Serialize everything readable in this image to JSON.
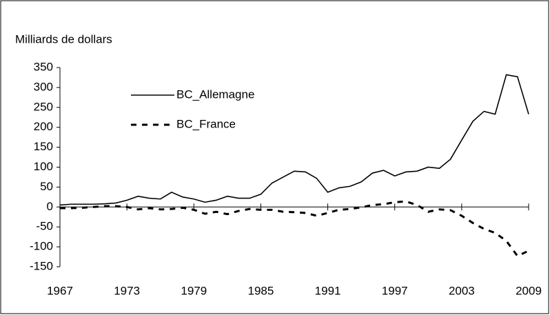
{
  "chart_data": {
    "type": "line",
    "y_label": "Milliards de dollars",
    "x": [
      1967,
      1968,
      1969,
      1970,
      1971,
      1972,
      1973,
      1974,
      1975,
      1976,
      1977,
      1978,
      1979,
      1980,
      1981,
      1982,
      1983,
      1984,
      1985,
      1986,
      1987,
      1988,
      1989,
      1990,
      1991,
      1992,
      1993,
      1994,
      1995,
      1996,
      1997,
      1998,
      1999,
      2000,
      2001,
      2002,
      2003,
      2004,
      2005,
      2006,
      2007,
      2008,
      2009
    ],
    "series": [
      {
        "name": "BC_Allemagne",
        "color": "#000000",
        "dash": false,
        "values": [
          5,
          7,
          7,
          7,
          8,
          10,
          17,
          27,
          22,
          20,
          37,
          25,
          20,
          12,
          17,
          27,
          22,
          22,
          32,
          60,
          75,
          90,
          88,
          72,
          37,
          48,
          52,
          63,
          85,
          92,
          78,
          88,
          90,
          100,
          97,
          120,
          168,
          215,
          240,
          233,
          332,
          327,
          233
        ]
      },
      {
        "name": "BC_France",
        "color": "#000000",
        "dash": true,
        "values": [
          -3,
          -3,
          -2,
          0,
          2,
          2,
          0,
          -6,
          -3,
          -6,
          -5,
          -2,
          -7,
          -17,
          -12,
          -18,
          -10,
          -5,
          -7,
          -7,
          -12,
          -13,
          -15,
          -22,
          -15,
          -7,
          -5,
          -1,
          5,
          7,
          12,
          14,
          5,
          -12,
          -6,
          -8,
          -22,
          -40,
          -55,
          -65,
          -85,
          -123,
          -110
        ]
      }
    ],
    "xlim": [
      1967,
      2009
    ],
    "xticks": [
      1967,
      1973,
      1979,
      1985,
      1991,
      1997,
      2003,
      2009
    ],
    "ylim": [
      -150,
      350
    ],
    "yticks": [
      -150,
      -100,
      -50,
      0,
      50,
      100,
      150,
      200,
      250,
      300,
      350
    ]
  }
}
